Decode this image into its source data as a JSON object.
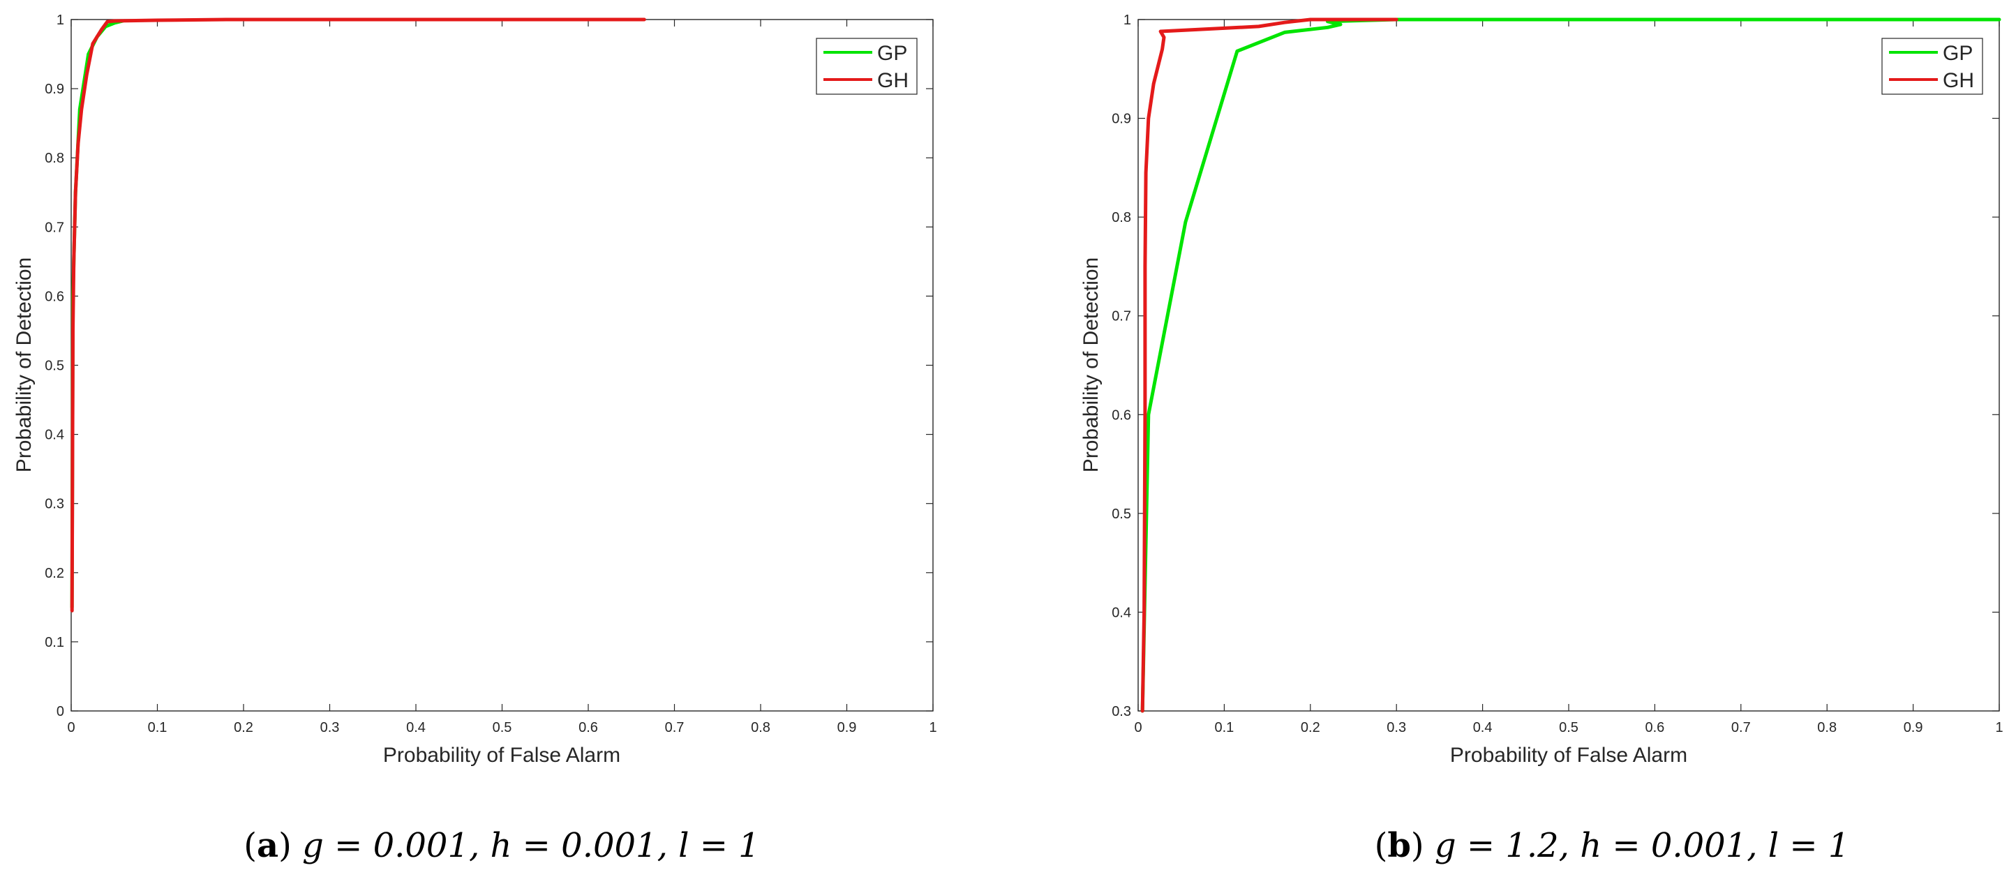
{
  "colors": {
    "GP": "#00e400",
    "GH": "#e41a1a",
    "axis": "#262626"
  },
  "chart_data": [
    {
      "type": "line",
      "xlabel": "Probability of False Alarm",
      "ylabel": "Probability of Detection",
      "xlim": [
        0,
        1
      ],
      "ylim": [
        0,
        1
      ],
      "xticks": [
        0,
        0.1,
        0.2,
        0.3,
        0.4,
        0.5,
        0.6,
        0.7,
        0.8,
        0.9,
        1
      ],
      "xtick_labels": [
        "0",
        "0.1",
        "0.2",
        "0.3",
        "0.4",
        "0.5",
        "0.6",
        "0.7",
        "0.8",
        "0.9",
        "1"
      ],
      "yticks": [
        0,
        0.1,
        0.2,
        0.3,
        0.4,
        0.5,
        0.6,
        0.7,
        0.8,
        0.9,
        1
      ],
      "ytick_labels": [
        "0",
        "0.1",
        "0.2",
        "0.3",
        "0.4",
        "0.5",
        "0.6",
        "0.7",
        "0.8",
        "0.9",
        "1"
      ],
      "grid": false,
      "legend_position": "top-right",
      "series": [
        {
          "name": "GP",
          "color": "#00e400",
          "x": [
            0.001,
            0.002,
            0.005,
            0.01,
            0.02,
            0.03,
            0.04,
            0.05,
            0.06
          ],
          "y": [
            0.15,
            0.6,
            0.75,
            0.87,
            0.95,
            0.975,
            0.99,
            0.995,
            0.998
          ]
        },
        {
          "name": "GH",
          "color": "#e41a1a",
          "x": [
            0.001,
            0.002,
            0.003,
            0.005,
            0.008,
            0.012,
            0.018,
            0.025,
            0.035,
            0.042,
            0.05,
            0.1,
            0.18,
            0.3,
            0.45,
            0.665
          ],
          "y": [
            0.145,
            0.55,
            0.65,
            0.75,
            0.82,
            0.87,
            0.92,
            0.965,
            0.985,
            0.997,
            0.998,
            0.999,
            1.0,
            1.0,
            1.0,
            1.0
          ]
        }
      ],
      "caption": {
        "letter": "a",
        "text": "g = 0.001, h = 0.001, l = 1"
      }
    },
    {
      "type": "line",
      "xlabel": "Probability of False Alarm",
      "ylabel": "Probability of Detection",
      "xlim": [
        0,
        1
      ],
      "ylim": [
        0.3,
        1
      ],
      "xticks": [
        0,
        0.1,
        0.2,
        0.3,
        0.4,
        0.5,
        0.6,
        0.7,
        0.8,
        0.9,
        1
      ],
      "xtick_labels": [
        "0",
        "0.1",
        "0.2",
        "0.3",
        "0.4",
        "0.5",
        "0.6",
        "0.7",
        "0.8",
        "0.9",
        "1"
      ],
      "yticks": [
        0.3,
        0.4,
        0.5,
        0.6,
        0.7,
        0.8,
        0.9,
        1
      ],
      "ytick_labels": [
        "0.3",
        "0.4",
        "0.5",
        "0.6",
        "0.7",
        "0.8",
        "0.9",
        "1"
      ],
      "grid": false,
      "legend_position": "top-right",
      "series": [
        {
          "name": "GP",
          "color": "#00e400",
          "x": [
            0.005,
            0.012,
            0.055,
            0.115,
            0.17,
            0.22,
            0.235,
            0.22,
            0.3,
            0.5,
            1.0
          ],
          "y": [
            0.3,
            0.6,
            0.795,
            0.968,
            0.987,
            0.992,
            0.995,
            0.998,
            1.0,
            1.0,
            1.0
          ],
          "visible_range": "from y = 0.3"
        },
        {
          "name": "GH",
          "color": "#e41a1a",
          "x": [
            0.005,
            0.007,
            0.008,
            0.008,
            0.009,
            0.012,
            0.018,
            0.028,
            0.03,
            0.026,
            0.14,
            0.17,
            0.2,
            0.3
          ],
          "y": [
            0.3,
            0.4,
            0.6,
            0.75,
            0.845,
            0.9,
            0.935,
            0.97,
            0.982,
            0.988,
            0.993,
            0.997,
            1.0,
            1.0
          ]
        }
      ],
      "caption": {
        "letter": "b",
        "text": "g = 1.2, h = 0.001, l = 1"
      }
    }
  ]
}
